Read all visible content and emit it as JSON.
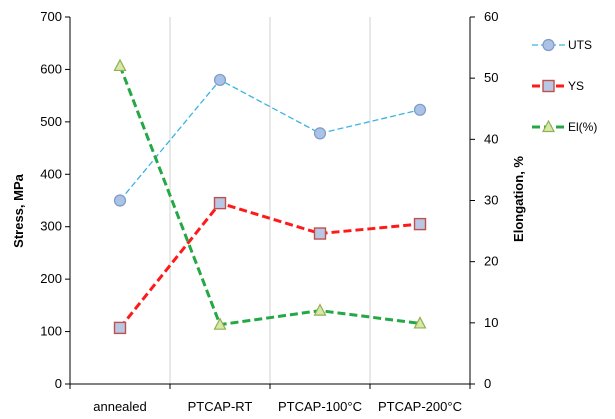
{
  "chart_data": {
    "type": "line",
    "categories": [
      "annealed",
      "PTCAP-RT",
      "PTCAP-100°C",
      "PTCAP-200°C"
    ],
    "y_left": {
      "label": "Stress, MPa",
      "range": [
        0,
        700
      ],
      "ticks": [
        "0",
        "100",
        "200",
        "300",
        "400",
        "500",
        "600",
        "700"
      ]
    },
    "y_right": {
      "label": "Elongation, %",
      "range": [
        0,
        60
      ],
      "ticks": [
        "0",
        "10",
        "20",
        "30",
        "40",
        "50",
        "60"
      ]
    },
    "series": [
      {
        "name": "UTS",
        "axis": "left",
        "values": [
          350,
          580,
          478,
          523
        ],
        "color": "#3ab4e6",
        "marker": "circle",
        "marker_fill": "#a9c2e6",
        "marker_stroke": "#7f99c8"
      },
      {
        "name": "YS",
        "axis": "left",
        "values": [
          107,
          345,
          287,
          305
        ],
        "color": "#ff1a1a",
        "marker": "square",
        "marker_fill": "#b8c8e4",
        "marker_stroke": "#c0504d"
      },
      {
        "name": "El(%)",
        "axis": "right",
        "values": [
          52,
          9.7,
          12,
          9.9
        ],
        "color": "#24a845",
        "marker": "triangle",
        "marker_fill": "#d6e9a9",
        "marker_stroke": "#92b050"
      }
    ],
    "grid": "vertical-category-lines",
    "legend_position": "right"
  }
}
